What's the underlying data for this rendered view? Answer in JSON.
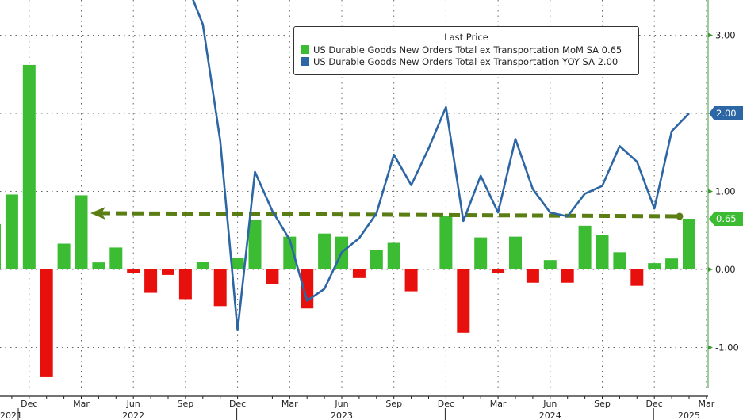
{
  "chart_data": {
    "type": "bar+line",
    "legend_title": "Last Price",
    "legend_placement": "top-right",
    "series": [
      {
        "name": "US Durable Goods New Orders Total ex Transportation MoM SA",
        "last": "0.65",
        "type": "bar",
        "color_pos": "#3cbc32",
        "color_neg": "#e8100c",
        "values": [
          0.58,
          0.96,
          2.62,
          -1.38,
          0.33,
          0.95,
          0.09,
          0.28,
          -0.05,
          -0.3,
          -0.07,
          -0.38,
          0.1,
          -0.47,
          0.15,
          0.63,
          -0.19,
          0.42,
          -0.5,
          0.46,
          0.42,
          -0.11,
          0.25,
          0.34,
          -0.28,
          0.01,
          0.68,
          -0.81,
          0.41,
          -0.05,
          0.42,
          -0.17,
          0.12,
          -0.17,
          0.56,
          0.44,
          0.22,
          -0.21,
          0.08,
          0.14,
          0.65
        ]
      },
      {
        "name": "US Durable Goods New Orders Total ex Transportation YOY SA",
        "last": "2.00",
        "type": "line",
        "color": "#2d66a4",
        "values": [
          null,
          null,
          null,
          null,
          null,
          null,
          null,
          null,
          null,
          null,
          null,
          3.7,
          3.14,
          1.65,
          -0.78,
          1.25,
          0.75,
          0.38,
          -0.4,
          -0.25,
          0.22,
          0.4,
          0.72,
          1.47,
          1.08,
          1.55,
          2.08,
          0.62,
          1.2,
          0.73,
          1.67,
          1.03,
          0.73,
          0.68,
          0.97,
          1.07,
          1.58,
          1.38,
          0.78,
          1.77,
          2.0
        ]
      }
    ],
    "months": [
      "Oct 2021",
      "Nov 2021",
      "Dec 2021",
      "Jan 2022",
      "Feb 2022",
      "Mar 2022",
      "Apr 2022",
      "May 2022",
      "Jun 2022",
      "Jul 2022",
      "Aug 2022",
      "Sep 2022",
      "Oct 2022",
      "Nov 2022",
      "Dec 2022",
      "Jan 2023",
      "Feb 2023",
      "Mar 2023",
      "Apr 2023",
      "May 2023",
      "Jun 2023",
      "Jul 2023",
      "Aug 2023",
      "Sep 2023",
      "Oct 2023",
      "Nov 2023",
      "Dec 2023",
      "Jan 2024",
      "Feb 2024",
      "Mar 2024",
      "Apr 2024",
      "May 2024",
      "Jun 2024",
      "Jul 2024",
      "Aug 2024",
      "Sep 2024",
      "Oct 2024",
      "Nov 2024",
      "Dec 2024",
      "Jan 2025",
      "Feb 2025"
    ],
    "ylim": [
      -1.52,
      3.45
    ],
    "y_ticks": [
      "3.00",
      "1.00",
      "0.00",
      "-1.00"
    ],
    "y_tick_values": [
      3,
      1,
      0,
      -1
    ],
    "x_month_labels": [
      {
        "label": "Dec",
        "i": 2
      },
      {
        "label": "Mar",
        "i": 5
      },
      {
        "label": "Jun",
        "i": 8
      },
      {
        "label": "Sep",
        "i": 11
      },
      {
        "label": "Dec",
        "i": 14
      },
      {
        "label": "Mar",
        "i": 17
      },
      {
        "label": "Jun",
        "i": 20
      },
      {
        "label": "Sep",
        "i": 23
      },
      {
        "label": "Dec",
        "i": 26
      },
      {
        "label": "Mar",
        "i": 29
      },
      {
        "label": "Jun",
        "i": 32
      },
      {
        "label": "Sep",
        "i": 35
      },
      {
        "label": "Dec",
        "i": 38
      },
      {
        "label": "Mar",
        "i": 41
      }
    ],
    "x_year_labels": [
      {
        "label": "2021",
        "i": 0.3
      },
      {
        "label": "2022",
        "i": 8
      },
      {
        "label": "2023",
        "i": 20
      },
      {
        "label": "2024",
        "i": 32
      },
      {
        "label": "2025",
        "i": 40
      }
    ],
    "reference_line": {
      "value": 0.65,
      "color": "#5a7d14"
    },
    "grid": true
  }
}
